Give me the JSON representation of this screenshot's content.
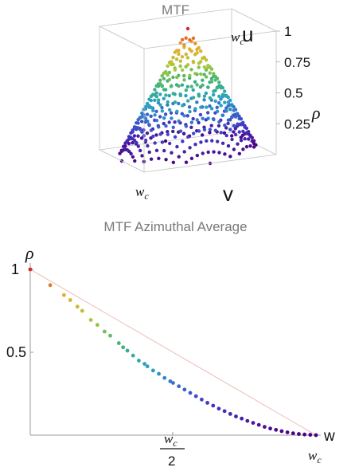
{
  "charts": {
    "mtf_3d": {
      "title": "MTF",
      "axis_labels": {
        "u": "u",
        "v": "v",
        "rho": "ρ"
      },
      "corner_labels": {
        "u_end": "w",
        "u_end_sub": "c",
        "v_end": "w",
        "v_end_sub": "c"
      }
    },
    "mtf_azimuthal": {
      "title": "MTF Azimuthal Average",
      "y_axis_label": "ρ",
      "x_axis_label": "w",
      "x_tick_half_num": "w",
      "x_tick_half_sub": "c",
      "x_tick_half_den": "2",
      "x_end": "w",
      "x_end_sub": "c"
    }
  },
  "chart_data": [
    {
      "type": "scatter",
      "title": "MTF",
      "projection": "3d",
      "xlabel": "u",
      "ylabel": "v",
      "zlabel": "ρ",
      "zlim": [
        0,
        1
      ],
      "z_ticks": [
        "0.25",
        "0.5",
        "0.75",
        "1"
      ],
      "x_range_label": "w_c",
      "y_range_label": "w_c",
      "surface": "rho = 1 - r/w_c, r = sqrt(u^2 + v^2), sampled on a grid within the cutoff circle",
      "color_scale": "rainbow (violet at 0 to red at 1)"
    },
    {
      "type": "scatter",
      "title": "MTF Azimuthal Average",
      "xlabel": "w",
      "ylabel": "ρ",
      "xlim": [
        0,
        1
      ],
      "ylim": [
        0,
        1
      ],
      "x_unit": "w_c",
      "x_ticks": [
        "w_c/2",
        "w_c"
      ],
      "y_ticks": [
        "0.5",
        "1"
      ],
      "fit_line": {
        "from": [
          0,
          1
        ],
        "to": [
          1,
          0
        ]
      },
      "x": [
        0.0,
        0.07,
        0.118,
        0.14,
        0.165,
        0.182,
        0.212,
        0.235,
        0.26,
        0.28,
        0.31,
        0.325,
        0.34,
        0.36,
        0.38,
        0.4,
        0.41,
        0.43,
        0.45,
        0.47,
        0.49,
        0.5,
        0.52,
        0.54,
        0.56,
        0.58,
        0.6,
        0.62,
        0.64,
        0.66,
        0.68,
        0.7,
        0.72,
        0.74,
        0.76,
        0.78,
        0.8,
        0.82,
        0.84,
        0.86,
        0.88,
        0.9,
        0.92,
        0.94,
        0.96,
        0.98,
        1.0
      ],
      "y": [
        1.0,
        0.905,
        0.845,
        0.815,
        0.775,
        0.75,
        0.695,
        0.665,
        0.625,
        0.6,
        0.555,
        0.53,
        0.51,
        0.48,
        0.45,
        0.43,
        0.415,
        0.39,
        0.37,
        0.345,
        0.325,
        0.315,
        0.295,
        0.275,
        0.255,
        0.235,
        0.215,
        0.195,
        0.178,
        0.16,
        0.145,
        0.128,
        0.113,
        0.1,
        0.086,
        0.074,
        0.062,
        0.05,
        0.04,
        0.032,
        0.024,
        0.017,
        0.011,
        0.007,
        0.004,
        0.002,
        0.0
      ],
      "color_scale": "rainbow (red at rho=1 to violet at rho=0)"
    }
  ]
}
